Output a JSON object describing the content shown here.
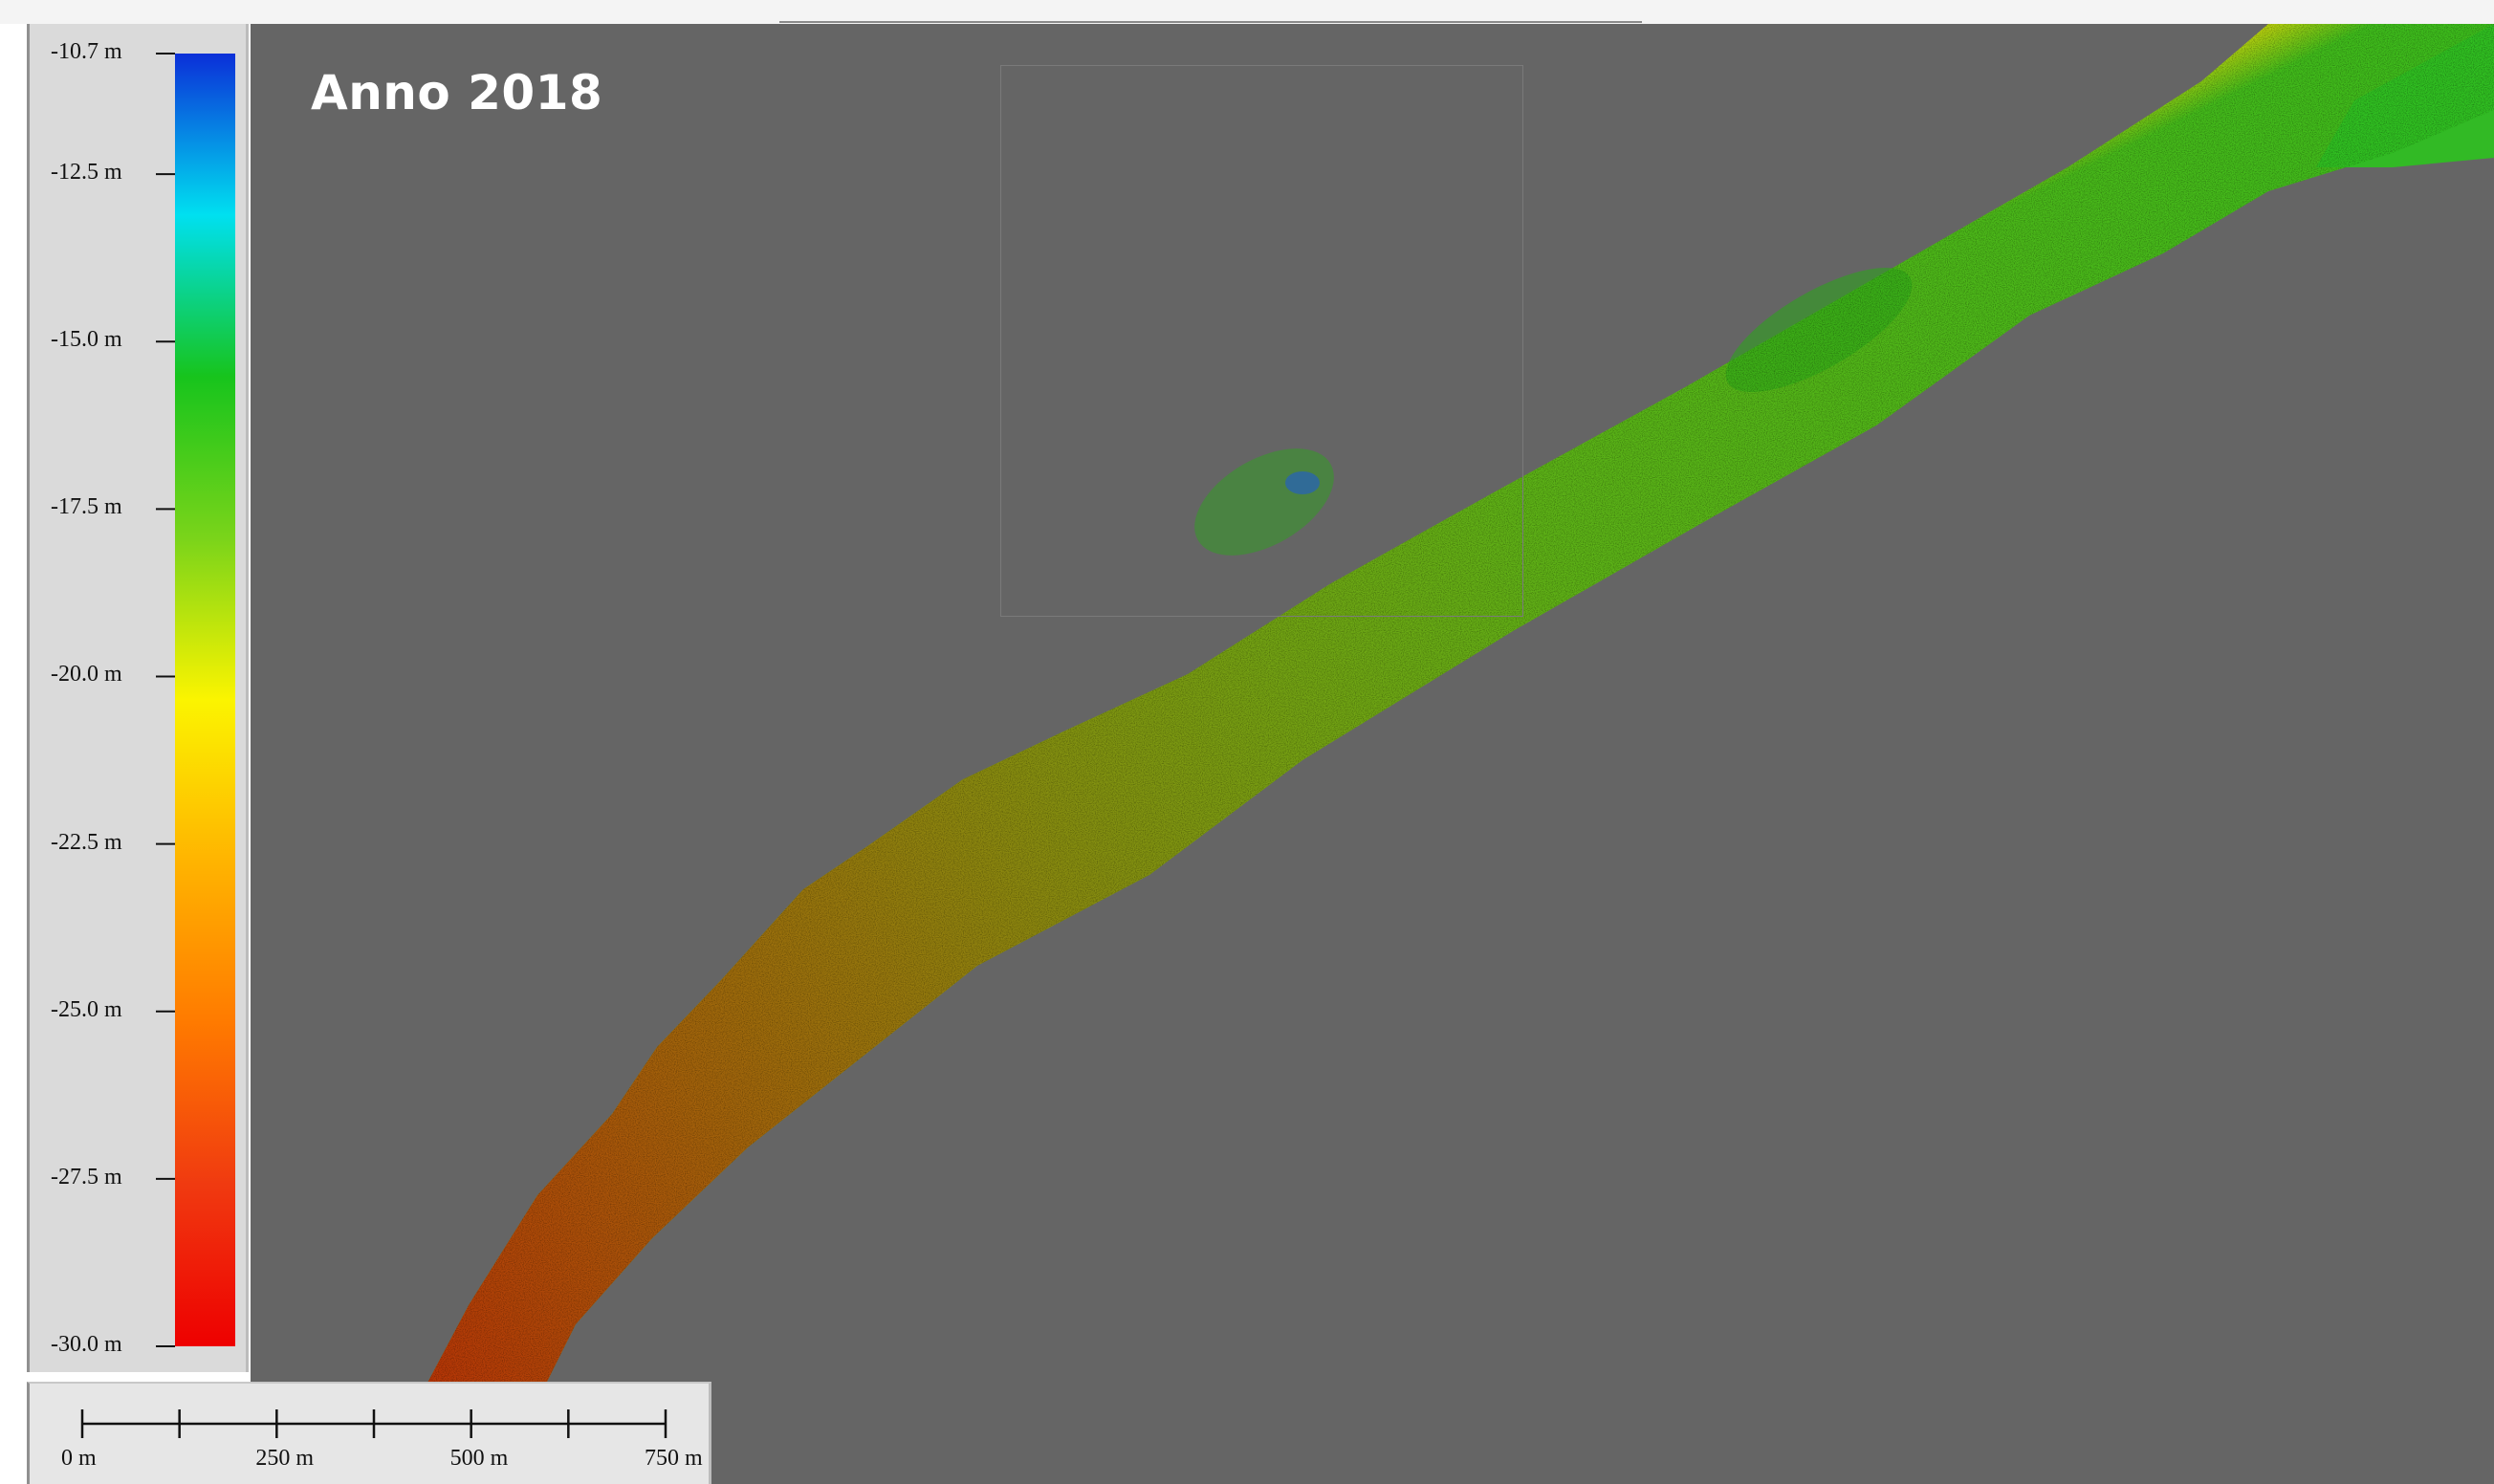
{
  "title": "Anno 2018",
  "legend": {
    "unit": "m",
    "min_value": -30.0,
    "max_value": -10.7,
    "ticks": [
      {
        "label": "-10.7 m",
        "value": -10.7
      },
      {
        "label": "-12.5 m",
        "value": -12.5
      },
      {
        "label": "-15.0 m",
        "value": -15.0
      },
      {
        "label": "-17.5 m",
        "value": -17.5
      },
      {
        "label": "-20.0 m",
        "value": -20.0
      },
      {
        "label": "-22.5 m",
        "value": -22.5
      },
      {
        "label": "-25.0 m",
        "value": -25.0
      },
      {
        "label": "-27.5 m",
        "value": -27.5
      },
      {
        "label": "-30.0 m",
        "value": -30.0
      }
    ],
    "colormap": [
      "#0b2fd8",
      "#00e0f0",
      "#17c41c",
      "#7ad41a",
      "#fbf400",
      "#ffb400",
      "#ff7a00",
      "#f03a10",
      "#ee0000"
    ]
  },
  "scale_bar": {
    "labels": [
      "0 m",
      "250 m",
      "500 m",
      "750 m"
    ],
    "max_value_m": 750,
    "minor_ticks": 7
  },
  "colors": {
    "background": "#656565",
    "shallow": "#17c41c",
    "mid": "#fbf400",
    "deep": "#ee0000"
  }
}
